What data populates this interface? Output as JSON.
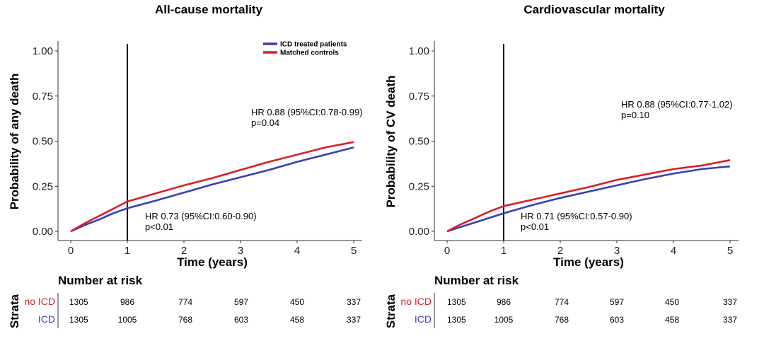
{
  "colors": {
    "icd": "#3a3fb5",
    "control": "#d81f26",
    "axis": "#333333"
  },
  "legend": {
    "position": "top-right",
    "items": [
      "ICD treated patients",
      "Matched controls"
    ]
  },
  "risk_table": {
    "title": "Number at risk",
    "strata_title": "Strata",
    "rows": [
      {
        "label": "no ICD",
        "values": [
          "1305",
          "986",
          "774",
          "597",
          "450",
          "337"
        ]
      },
      {
        "label": "ICD",
        "values": [
          "1305",
          "1005",
          "768",
          "603",
          "458",
          "337"
        ]
      }
    ]
  },
  "chart_data": [
    {
      "type": "line",
      "title": "All-cause mortality",
      "xlabel": "Time (years)",
      "ylabel": "Probability of any death",
      "xlim": [
        0,
        5
      ],
      "ylim": [
        0,
        1
      ],
      "x_ticks": [
        "0",
        "1",
        "2",
        "3",
        "4",
        "5"
      ],
      "y_ticks": [
        "0.00",
        "0.25",
        "0.50",
        "0.75",
        "1.00"
      ],
      "grid": false,
      "vline_x": 1,
      "annotations": [
        {
          "line1": "HR 0.88 (95%CI:0.78-0.99)",
          "line2": "p=0.04",
          "x": 3.2,
          "y": 0.65
        },
        {
          "line1": "HR 0.73 (95%CI:0.60-0.90)",
          "line2": "p<0.01",
          "x": 1.3,
          "y": 0.08
        }
      ],
      "series": [
        {
          "name": "ICD treated patients",
          "color": "#3a3fb5",
          "x": [
            0,
            0.25,
            0.5,
            0.75,
            1,
            1.5,
            2,
            2.5,
            3,
            3.5,
            4,
            4.5,
            5
          ],
          "y": [
            0,
            0.035,
            0.065,
            0.1,
            0.128,
            0.17,
            0.215,
            0.26,
            0.3,
            0.34,
            0.385,
            0.425,
            0.465
          ]
        },
        {
          "name": "Matched controls",
          "color": "#d81f26",
          "x": [
            0,
            0.25,
            0.5,
            0.75,
            1,
            1.5,
            2,
            2.5,
            3,
            3.5,
            4,
            4.5,
            5
          ],
          "y": [
            0,
            0.045,
            0.085,
            0.125,
            0.165,
            0.21,
            0.255,
            0.295,
            0.34,
            0.385,
            0.425,
            0.465,
            0.495
          ]
        }
      ]
    },
    {
      "type": "line",
      "title": "Cardiovascular mortality",
      "xlabel": "Time (years)",
      "ylabel": "Probability of CV death",
      "xlim": [
        0,
        5
      ],
      "ylim": [
        0,
        1
      ],
      "x_ticks": [
        "0",
        "1",
        "2",
        "3",
        "4",
        "5"
      ],
      "y_ticks": [
        "0.00",
        "0.25",
        "0.50",
        "0.75",
        "1.00"
      ],
      "grid": false,
      "vline_x": 1,
      "annotations": [
        {
          "line1": "HR 0.88 (95%CI:0.77-1.02)",
          "line2": "p=0.10",
          "x": 3.1,
          "y": 0.7
        },
        {
          "line1": "HR 0.71 (95%CI:0.57-0.90)",
          "line2": "p<0.01",
          "x": 1.3,
          "y": 0.08
        }
      ],
      "series": [
        {
          "name": "ICD treated patients",
          "color": "#3a3fb5",
          "x": [
            0,
            0.25,
            0.5,
            0.75,
            1,
            1.5,
            2,
            2.5,
            3,
            3.5,
            4,
            4.5,
            5
          ],
          "y": [
            0,
            0.025,
            0.05,
            0.075,
            0.1,
            0.145,
            0.185,
            0.22,
            0.255,
            0.29,
            0.32,
            0.345,
            0.36
          ]
        },
        {
          "name": "Matched controls",
          "color": "#d81f26",
          "x": [
            0,
            0.25,
            0.5,
            0.75,
            1,
            1.5,
            2,
            2.5,
            3,
            3.5,
            4,
            4.5,
            5
          ],
          "y": [
            0,
            0.04,
            0.075,
            0.11,
            0.14,
            0.175,
            0.21,
            0.245,
            0.285,
            0.315,
            0.345,
            0.365,
            0.395
          ]
        }
      ]
    }
  ]
}
